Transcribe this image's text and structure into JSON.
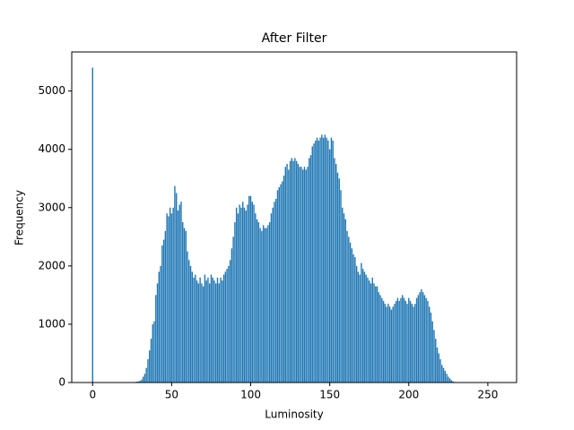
{
  "chart_data": {
    "type": "bar",
    "title": "After Filter",
    "x_label": "Luminosity",
    "y_label": "Frequency",
    "color": "#1f77b4",
    "x": [
      0,
      1,
      2,
      3,
      4,
      5,
      6,
      7,
      8,
      9,
      10,
      11,
      12,
      13,
      14,
      15,
      16,
      17,
      18,
      19,
      20,
      21,
      22,
      23,
      24,
      25,
      26,
      27,
      28,
      29,
      30,
      31,
      32,
      33,
      34,
      35,
      36,
      37,
      38,
      39,
      40,
      41,
      42,
      43,
      44,
      45,
      46,
      47,
      48,
      49,
      50,
      51,
      52,
      53,
      54,
      55,
      56,
      57,
      58,
      59,
      60,
      61,
      62,
      63,
      64,
      65,
      66,
      67,
      68,
      69,
      70,
      71,
      72,
      73,
      74,
      75,
      76,
      77,
      78,
      79,
      80,
      81,
      82,
      83,
      84,
      85,
      86,
      87,
      88,
      89,
      90,
      91,
      92,
      93,
      94,
      95,
      96,
      97,
      98,
      99,
      100,
      101,
      102,
      103,
      104,
      105,
      106,
      107,
      108,
      109,
      110,
      111,
      112,
      113,
      114,
      115,
      116,
      117,
      118,
      119,
      120,
      121,
      122,
      123,
      124,
      125,
      126,
      127,
      128,
      129,
      130,
      131,
      132,
      133,
      134,
      135,
      136,
      137,
      138,
      139,
      140,
      141,
      142,
      143,
      144,
      145,
      146,
      147,
      148,
      149,
      150,
      151,
      152,
      153,
      154,
      155,
      156,
      157,
      158,
      159,
      160,
      161,
      162,
      163,
      164,
      165,
      166,
      167,
      168,
      169,
      170,
      171,
      172,
      173,
      174,
      175,
      176,
      177,
      178,
      179,
      180,
      181,
      182,
      183,
      184,
      185,
      186,
      187,
      188,
      189,
      190,
      191,
      192,
      193,
      194,
      195,
      196,
      197,
      198,
      199,
      200,
      201,
      202,
      203,
      204,
      205,
      206,
      207,
      208,
      209,
      210,
      211,
      212,
      213,
      214,
      215,
      216,
      217,
      218,
      219,
      220,
      221,
      222,
      223,
      224,
      225,
      226,
      227,
      228,
      229,
      230,
      231,
      232,
      233,
      234,
      235,
      236,
      237,
      238,
      239,
      240,
      241,
      242,
      243,
      244,
      245,
      246,
      247,
      248,
      249,
      250,
      251,
      252,
      253,
      254,
      255
    ],
    "values": [
      5400,
      0,
      0,
      0,
      0,
      0,
      0,
      0,
      0,
      0,
      0,
      0,
      0,
      0,
      0,
      0,
      0,
      0,
      0,
      0,
      0,
      0,
      0,
      0,
      0,
      0,
      5,
      10,
      15,
      20,
      30,
      50,
      100,
      150,
      250,
      400,
      550,
      750,
      1000,
      1050,
      1500,
      1700,
      1900,
      2000,
      2350,
      2450,
      2600,
      2900,
      2850,
      3000,
      2900,
      3000,
      3370,
      3250,
      2950,
      3050,
      3100,
      2750,
      2650,
      2600,
      2250,
      2100,
      2000,
      1900,
      1800,
      1850,
      1750,
      1700,
      1800,
      1700,
      1650,
      1850,
      1750,
      1800,
      1700,
      1850,
      1800,
      1750,
      1700,
      1800,
      1700,
      1800,
      1750,
      1850,
      1900,
      1950,
      2000,
      2100,
      2300,
      2500,
      2750,
      3000,
      2900,
      3050,
      3000,
      3100,
      3000,
      2950,
      3050,
      3200,
      3200,
      3100,
      3050,
      2900,
      2800,
      2750,
      2650,
      2600,
      2700,
      2650,
      2650,
      2700,
      2750,
      2900,
      3000,
      3100,
      3150,
      3300,
      3350,
      3400,
      3450,
      3550,
      3700,
      3750,
      3650,
      3800,
      3850,
      3800,
      3850,
      3800,
      3750,
      3700,
      3700,
      3650,
      3700,
      3650,
      3700,
      3850,
      3900,
      4050,
      4100,
      4150,
      4200,
      4150,
      4200,
      4250,
      4200,
      4250,
      4200,
      4150,
      4000,
      4200,
      4150,
      3850,
      3750,
      3600,
      3500,
      3300,
      3000,
      2900,
      2800,
      2600,
      2500,
      2400,
      2300,
      2200,
      2150,
      2000,
      1900,
      1850,
      2050,
      1950,
      1900,
      1850,
      1800,
      1750,
      1700,
      1800,
      1700,
      1650,
      1650,
      1550,
      1500,
      1450,
      1400,
      1350,
      1300,
      1350,
      1300,
      1250,
      1300,
      1350,
      1400,
      1450,
      1400,
      1450,
      1500,
      1450,
      1400,
      1350,
      1450,
      1400,
      1350,
      1300,
      1350,
      1450,
      1500,
      1550,
      1600,
      1550,
      1500,
      1450,
      1400,
      1300,
      1200,
      1050,
      900,
      750,
      600,
      500,
      400,
      300,
      250,
      200,
      150,
      100,
      70,
      40,
      20,
      10,
      5,
      0,
      0,
      0,
      0,
      0,
      0,
      0,
      0,
      0,
      0,
      0,
      0,
      0,
      0,
      0,
      0,
      0,
      0,
      0,
      0,
      0,
      0,
      0,
      0,
      0
    ],
    "xlim": [
      -13.2,
      268.2
    ],
    "xticks": [
      0,
      50,
      100,
      150,
      200,
      250
    ],
    "ylim": [
      0,
      5670
    ],
    "yticks": [
      0,
      1000,
      2000,
      3000,
      4000,
      5000
    ]
  }
}
